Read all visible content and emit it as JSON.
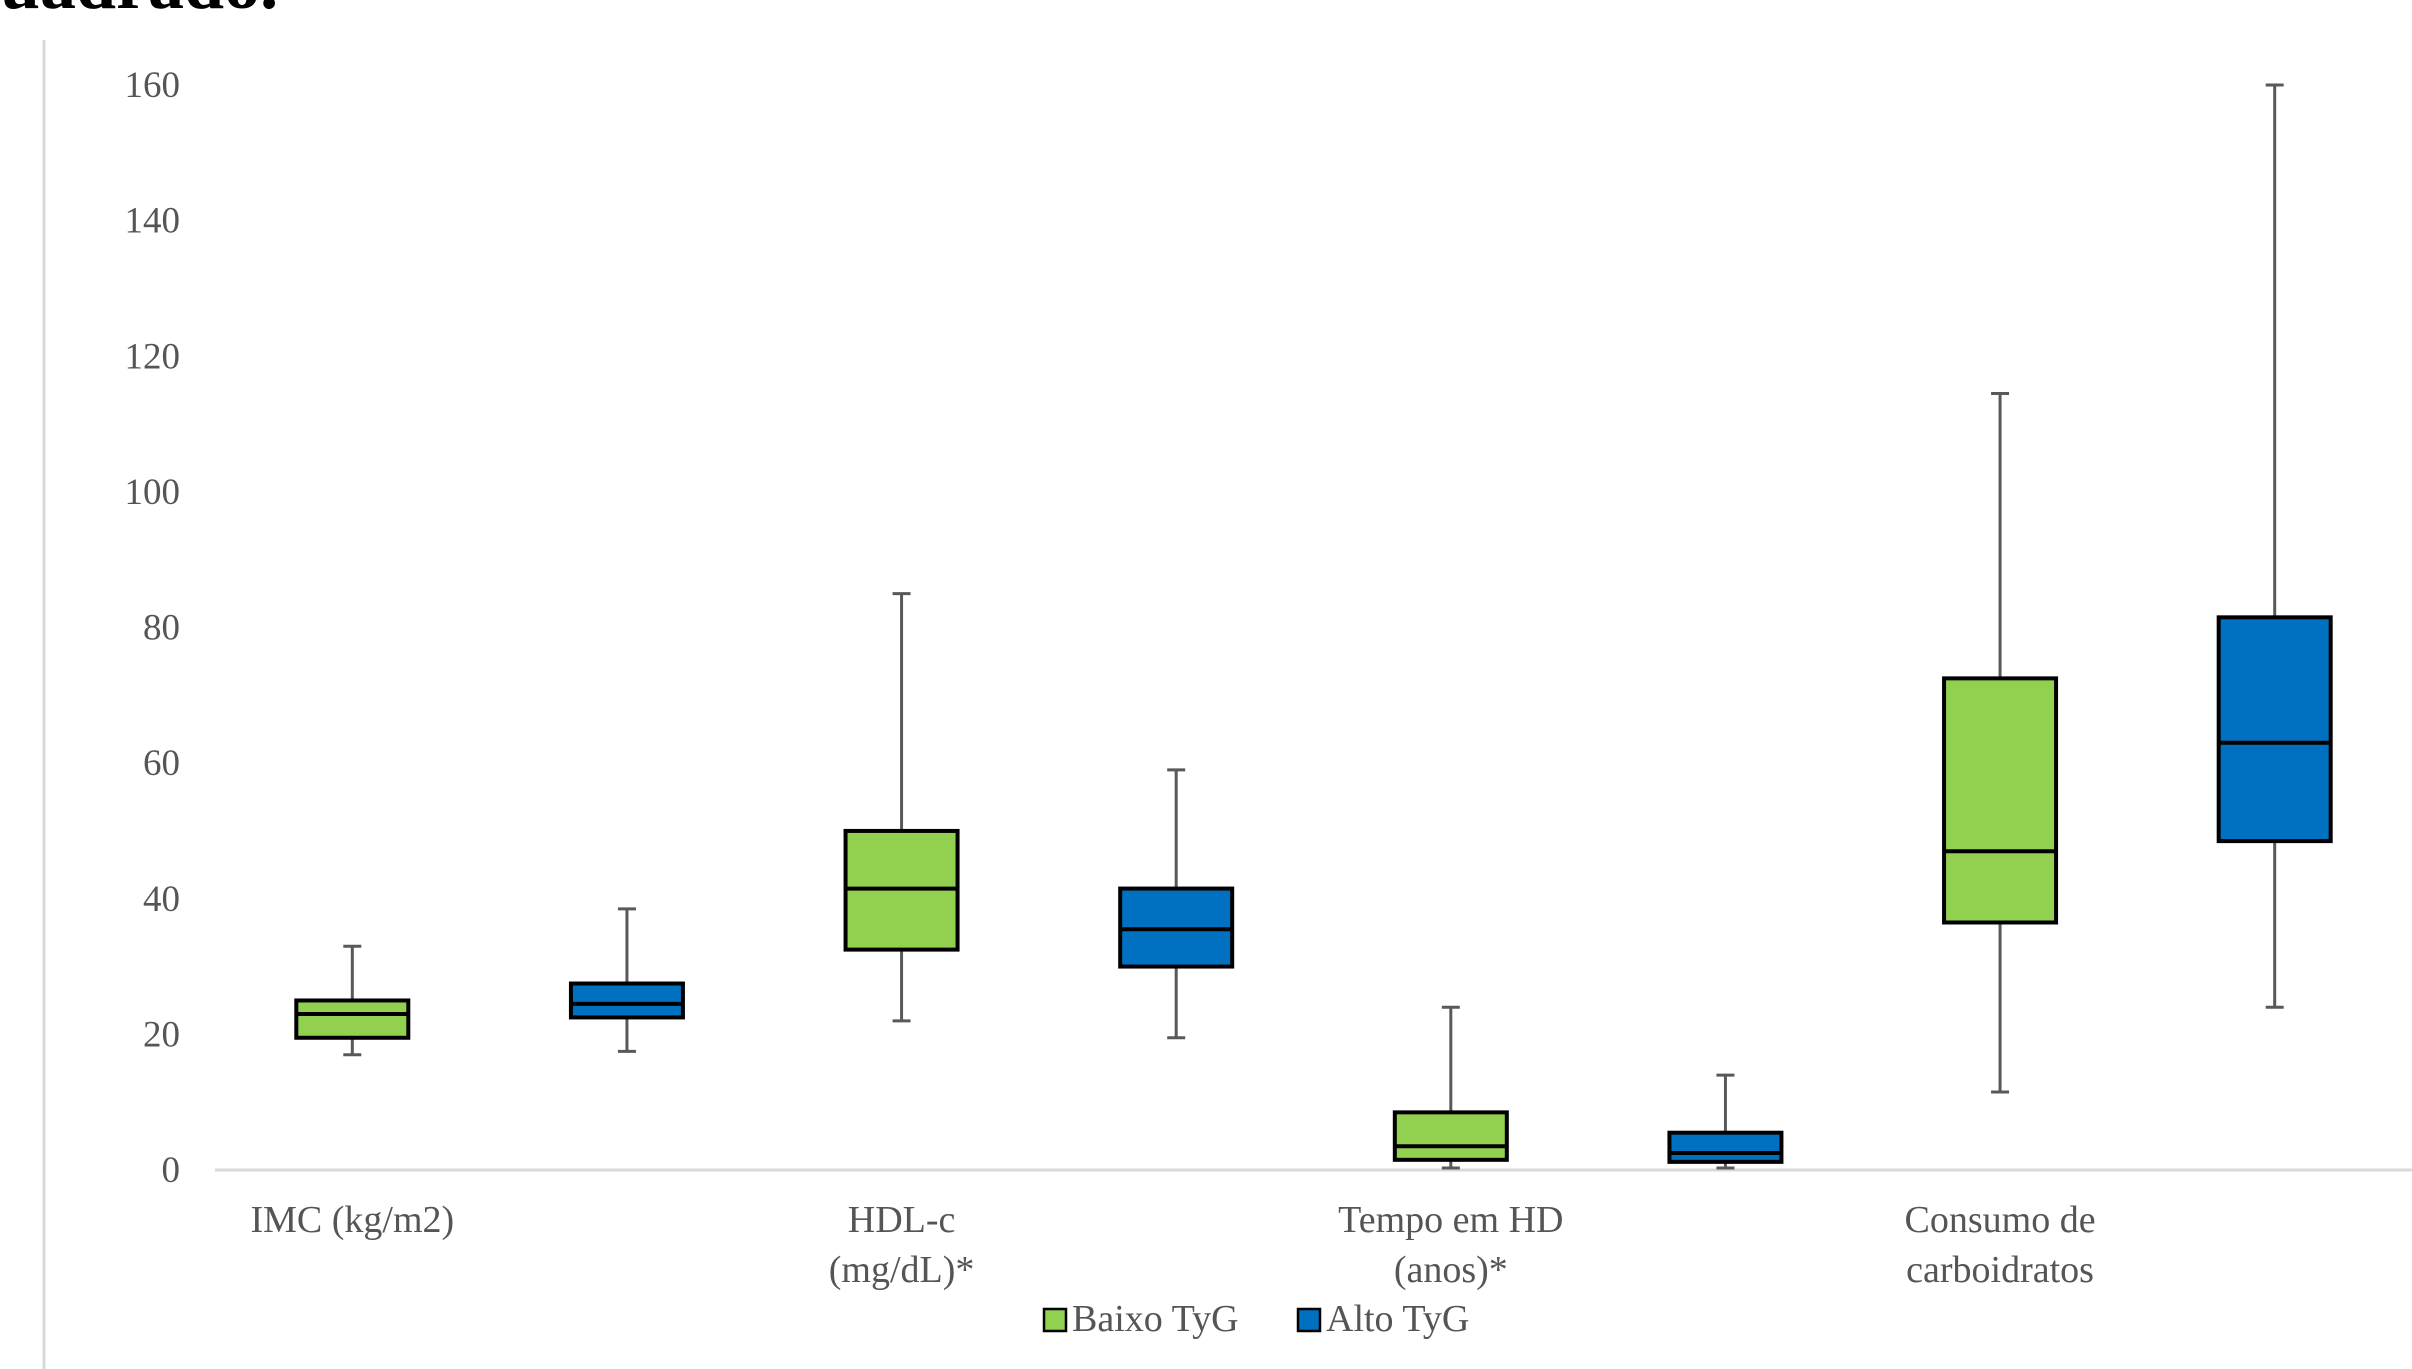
{
  "heading_fragment": "uadrado.",
  "chart_data": {
    "type": "box",
    "categories": [
      "IMC (kg/m2)",
      "HDL-c (mg/dL)*",
      "Tempo em HD (anos)*",
      "Consumo de carboidratos"
    ],
    "category_lines": [
      [
        "IMC (kg/m2)"
      ],
      [
        "HDL-c",
        "(mg/dL)*"
      ],
      [
        "Tempo em HD",
        "(anos)*"
      ],
      [
        "Consumo de",
        "carboidratos"
      ]
    ],
    "series": [
      {
        "name": "Baixo TyG",
        "color": "#92d050",
        "boxes": [
          {
            "min": 17,
            "q1": 19.5,
            "median": 23,
            "q3": 25,
            "max": 33
          },
          {
            "min": 22,
            "q1": 32.5,
            "median": 41.5,
            "q3": 50,
            "max": 85
          },
          {
            "min": 0.3,
            "q1": 1.5,
            "median": 3.5,
            "q3": 8.5,
            "max": 24
          },
          {
            "min": 11.5,
            "q1": 36.5,
            "median": 47,
            "q3": 72.5,
            "max": 114.5
          }
        ]
      },
      {
        "name": "Alto TyG",
        "color": "#0070c0",
        "boxes": [
          {
            "min": 17.5,
            "q1": 22.5,
            "median": 24.5,
            "q3": 27.5,
            "max": 38.5
          },
          {
            "min": 19.5,
            "q1": 30,
            "median": 35.5,
            "q3": 41.5,
            "max": 59
          },
          {
            "min": 0.3,
            "q1": 1.2,
            "median": 2.5,
            "q3": 5.5,
            "max": 14
          },
          {
            "min": 24,
            "q1": 48.5,
            "median": 63,
            "q3": 81.5,
            "max": 160
          }
        ]
      }
    ],
    "yticks": [
      0,
      20,
      40,
      60,
      80,
      100,
      120,
      140,
      160
    ],
    "ylim": [
      0,
      160
    ],
    "legend_position": "bottom",
    "grid": false
  }
}
